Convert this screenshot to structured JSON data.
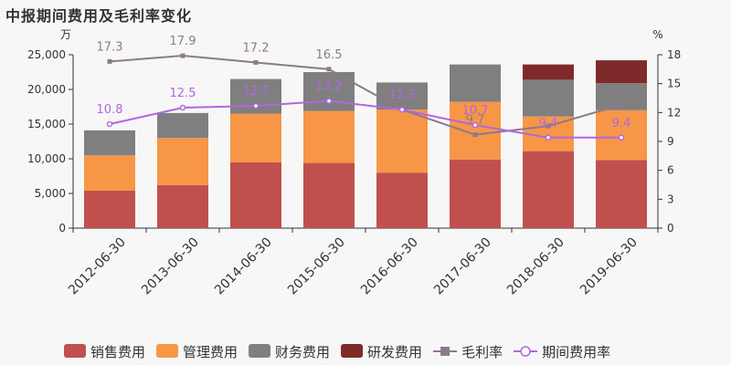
{
  "title": "中报期间费用及毛利率变化",
  "chart_data": {
    "type": "bar",
    "stacked": true,
    "categories": [
      "2012-06-30",
      "2013-06-30",
      "2014-06-30",
      "2015-06-30",
      "2016-06-30",
      "2017-06-30",
      "2018-06-30",
      "2019-06-30"
    ],
    "left_axis": {
      "unit": "万",
      "range": [
        0,
        25000
      ],
      "ticks": [
        "0",
        "5,000",
        "10,000",
        "15,000",
        "20,000",
        "25,000"
      ]
    },
    "right_axis": {
      "unit": "%",
      "range": [
        0,
        18
      ],
      "ticks": [
        "0",
        "3",
        "6",
        "9",
        "12",
        "15",
        "18"
      ]
    },
    "series": [
      {
        "name": "销售费用",
        "kind": "bar",
        "color": "#c0504d",
        "values": [
          5400,
          6200,
          9500,
          9400,
          8000,
          9900,
          11100,
          9800
        ]
      },
      {
        "name": "管理费用",
        "kind": "bar",
        "color": "#f79646",
        "values": [
          5100,
          6800,
          7000,
          7500,
          9100,
          8300,
          5000,
          7200
        ]
      },
      {
        "name": "财务费用",
        "kind": "bar",
        "color": "#7f7f7f",
        "values": [
          3600,
          3600,
          5000,
          5600,
          3900,
          5400,
          5300,
          3900
        ]
      },
      {
        "name": "研发费用",
        "kind": "bar",
        "color": "#7f2a2a",
        "values": [
          0,
          0,
          0,
          0,
          0,
          0,
          2200,
          3300
        ]
      },
      {
        "name": "毛利率",
        "kind": "line",
        "axis": "right",
        "color": "#8c7a8c",
        "values": [
          17.3,
          17.9,
          17.2,
          16.5,
          12.3,
          9.7,
          10.6,
          12.8
        ]
      },
      {
        "name": "期间费用率",
        "kind": "line",
        "axis": "right",
        "color": "#b266e0",
        "values": [
          10.8,
          12.5,
          12.7,
          13.2,
          12.3,
          10.7,
          9.4,
          9.4
        ]
      }
    ]
  }
}
